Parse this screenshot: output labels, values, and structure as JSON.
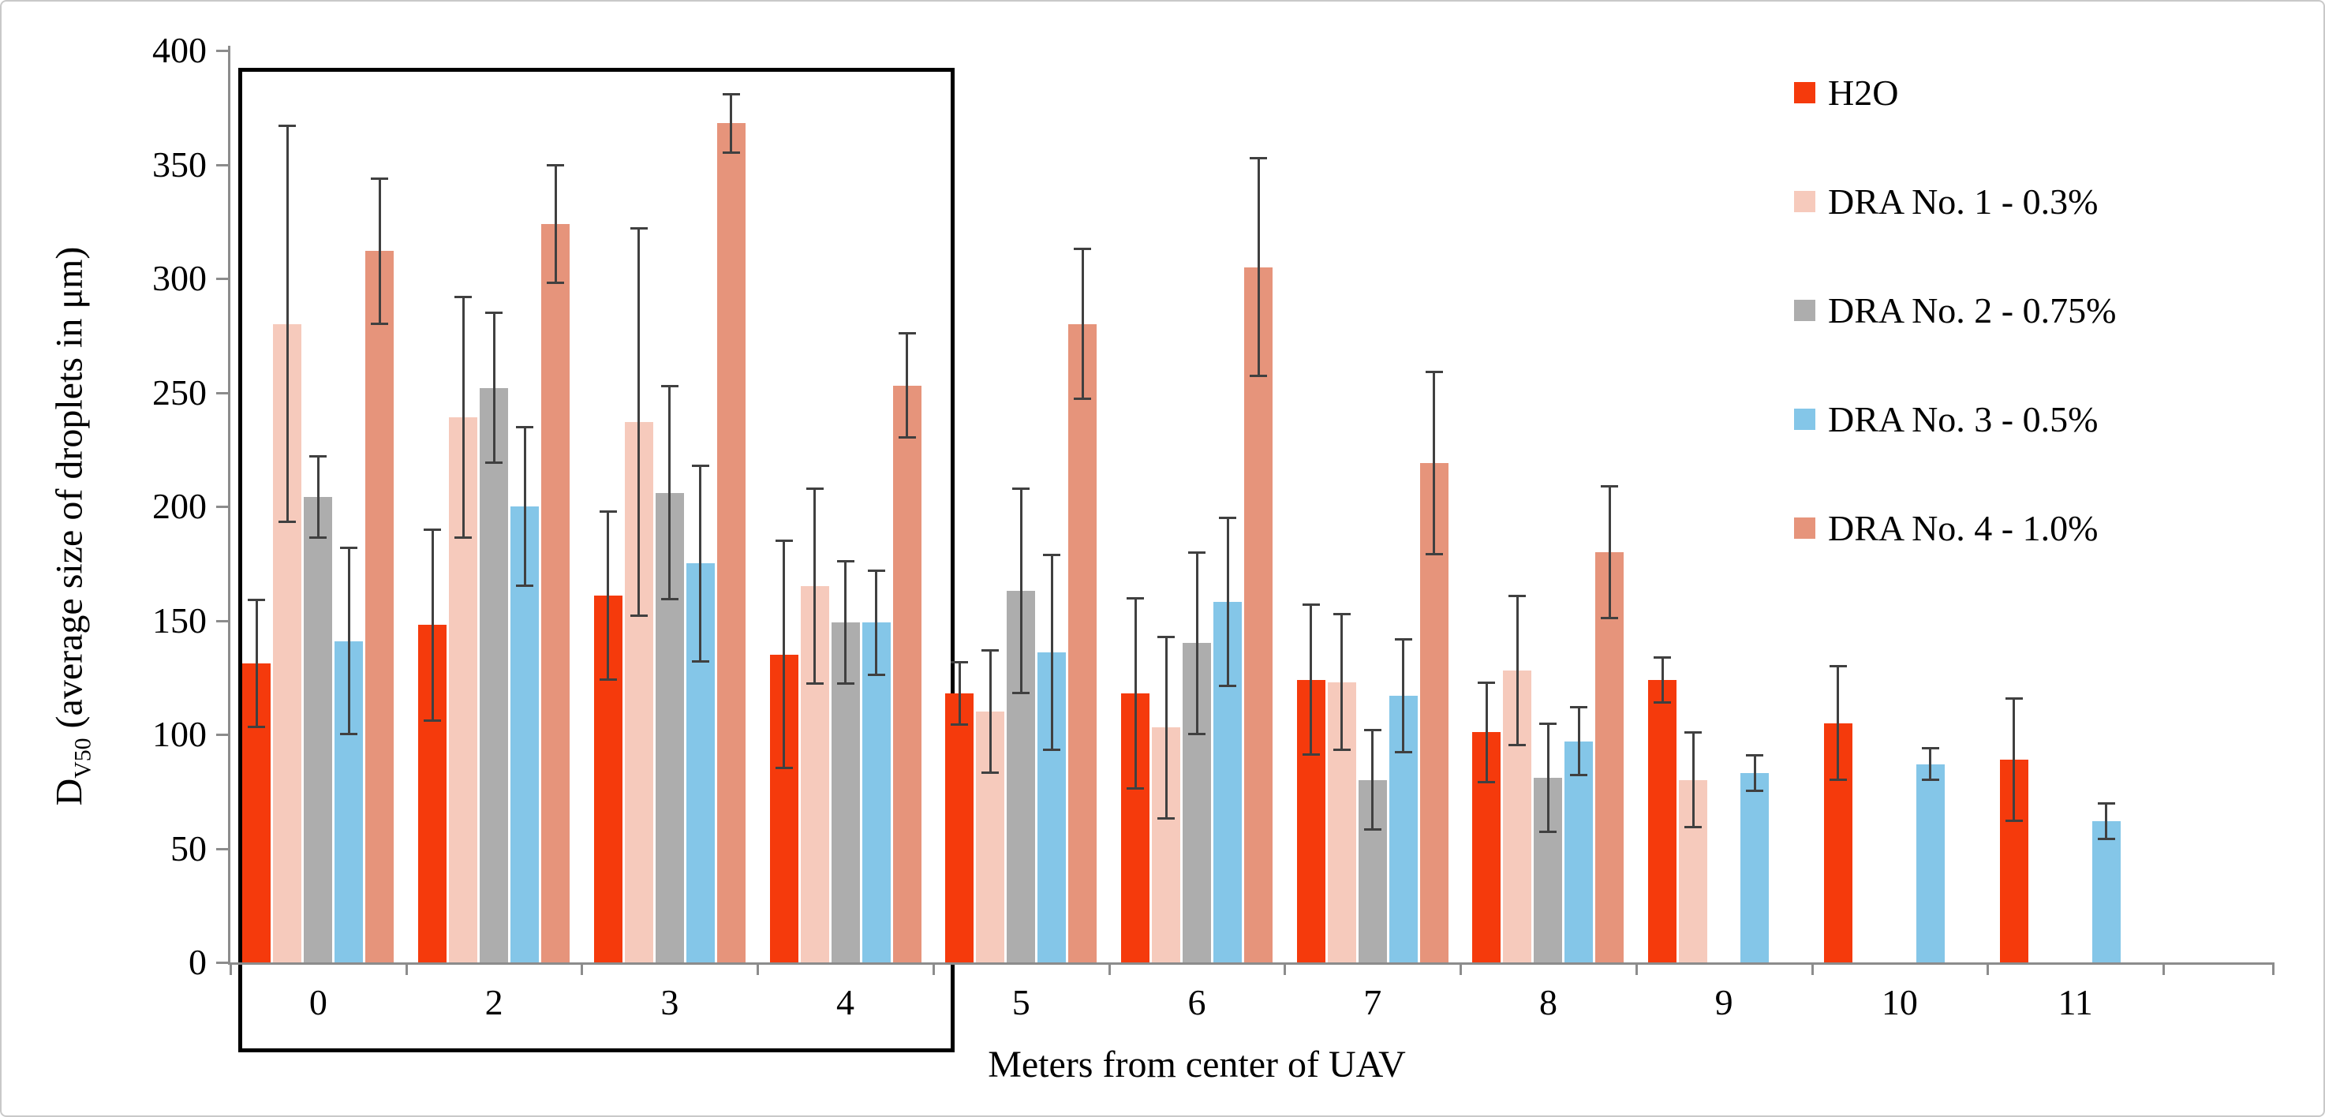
{
  "figure": {
    "x_axis_title": "Meters from center of UAV",
    "y_axis_title": {
      "prefix": "D",
      "sub": "V50",
      "rest": " (average size of droplets in μm)"
    }
  },
  "chart_data": {
    "type": "bar",
    "title": "",
    "xlabel": "Meters from center of UAV",
    "ylabel": "D_V50 (average size of droplets in μm)",
    "ylim": [
      0,
      400
    ],
    "y_ticks": [
      0,
      50,
      100,
      150,
      200,
      250,
      300,
      350,
      400
    ],
    "categories": [
      "0",
      "2",
      "3",
      "4",
      "5",
      "6",
      "7",
      "8",
      "9",
      "10",
      "11"
    ],
    "grid": false,
    "legend_position": "top-right",
    "error_bars": true,
    "highlight_box": {
      "categories_covered": [
        "0",
        "2",
        "3",
        "4"
      ],
      "border_color": "#000000"
    },
    "axis_color": "#8c8c8c",
    "error_bar_color": "#404040",
    "series": [
      {
        "name": "H2O",
        "color": "#f53a0c",
        "values": [
          131,
          148,
          161,
          135,
          118,
          118,
          124,
          101,
          124,
          105,
          89
        ],
        "errors": [
          28,
          42,
          37,
          50,
          14,
          42,
          33,
          22,
          10,
          25,
          27
        ]
      },
      {
        "name": "DRA No. 1 - 0.3%",
        "color": "#f6cabc",
        "values": [
          280,
          239,
          237,
          165,
          110,
          103,
          123,
          128,
          80,
          null,
          null
        ],
        "errors": [
          87,
          53,
          85,
          43,
          27,
          40,
          30,
          33,
          21,
          null,
          null
        ]
      },
      {
        "name": "DRA No. 2 - 0.75%",
        "color": "#adadad",
        "values": [
          204,
          252,
          206,
          149,
          163,
          140,
          80,
          81,
          null,
          null,
          null
        ],
        "errors": [
          18,
          33,
          47,
          27,
          45,
          40,
          22,
          24,
          null,
          null,
          null
        ]
      },
      {
        "name": "DRA No. 3 - 0.5%",
        "color": "#84c6e8",
        "values": [
          141,
          200,
          175,
          149,
          136,
          158,
          117,
          97,
          83,
          87,
          62
        ],
        "errors": [
          41,
          35,
          43,
          23,
          43,
          37,
          25,
          15,
          8,
          7,
          8
        ]
      },
      {
        "name": "DRA No. 4 - 1.0%",
        "color": "#e6947b",
        "values": [
          312,
          324,
          368,
          253,
          280,
          305,
          219,
          180,
          null,
          null,
          null
        ],
        "errors": [
          32,
          26,
          13,
          23,
          33,
          48,
          40,
          29,
          null,
          null,
          null
        ]
      }
    ]
  }
}
